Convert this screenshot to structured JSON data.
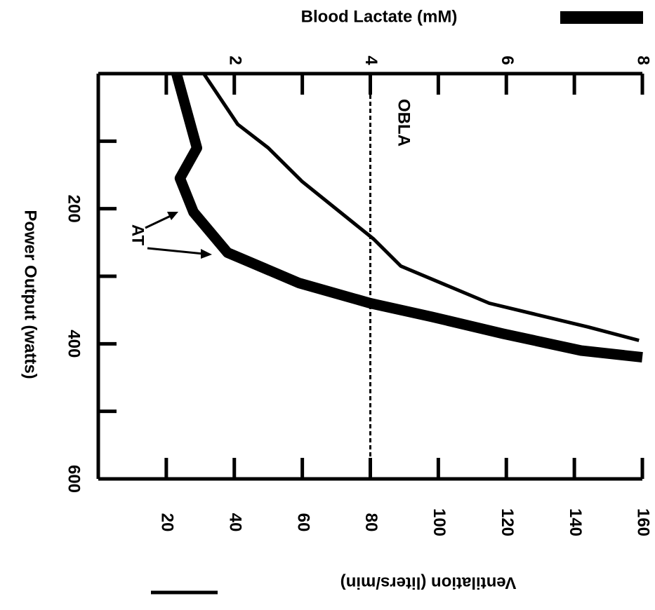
{
  "chart_data": {
    "type": "line",
    "xlabel": "Power Output (watts)",
    "xlim": [
      0,
      600
    ],
    "xticks": [
      200,
      400,
      600
    ],
    "xminor": [
      100,
      300,
      500
    ],
    "ylabel": "Blood Lactate (mM)",
    "ylim": [
      0,
      8
    ],
    "yticks": [
      2,
      4,
      6,
      8
    ],
    "yminor": [
      1,
      3,
      5,
      7
    ],
    "y2label": "Ventilation (liters/min)",
    "y2lim": [
      0,
      160
    ],
    "y2ticks": [
      20,
      40,
      60,
      80,
      100,
      120,
      140,
      160
    ],
    "series": [
      {
        "name": "Blood Lactate (mM)",
        "color": "#000000",
        "axis": "y",
        "x": [
          0,
          110,
          155,
          205,
          265,
          310,
          340,
          360,
          385,
          410,
          420
        ],
        "values": [
          1.15,
          1.45,
          1.2,
          1.4,
          1.9,
          2.95,
          4.0,
          4.9,
          5.95,
          7.1,
          8.0
        ]
      },
      {
        "name": "Ventilation (liters/min)",
        "color": "#000000",
        "axis": "y2",
        "x": [
          0,
          75,
          110,
          160,
          245,
          285,
          340,
          375,
          395
        ],
        "values": [
          31,
          41,
          50,
          60,
          81,
          89,
          115,
          144,
          159
        ]
      }
    ],
    "threshold": {
      "label": "OBLA",
      "value": 4
    },
    "annotations": [
      "AT"
    ]
  }
}
